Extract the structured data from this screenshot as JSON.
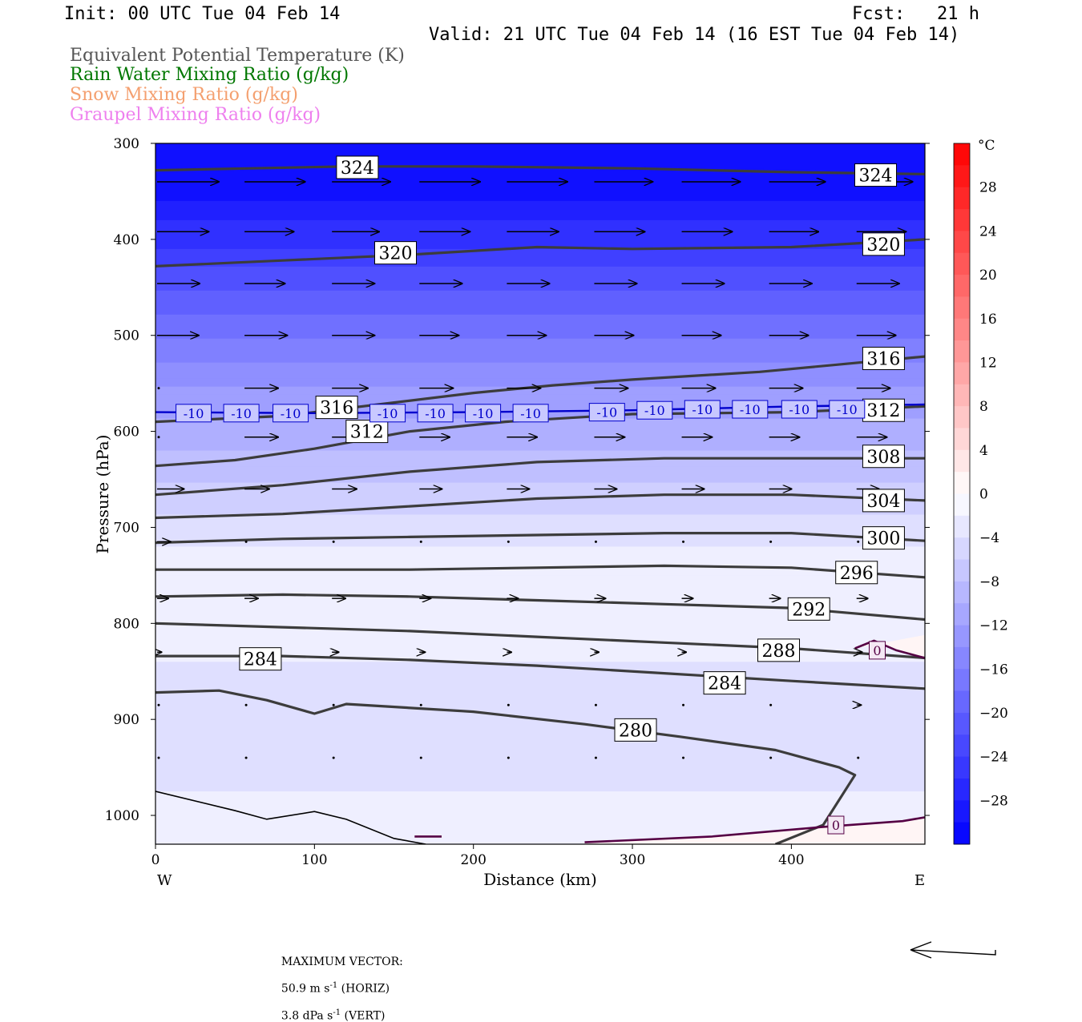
{
  "header": {
    "init": "Init: 00 UTC Tue 04 Feb 14",
    "fcst": "Fcst:   21 h",
    "valid": "Valid: 21 UTC Tue 04 Feb 14 (16 EST Tue 04 Feb 14)"
  },
  "legend": {
    "eqpt": "Equivalent Potential Temperature (K)",
    "rain": "Rain Water Mixing Ratio (g/kg)",
    "snow": "Snow Mixing Ratio (g/kg)",
    "graupel": "Graupel Mixing Ratio (g/kg)",
    "colors": {
      "eqpt": "#555555",
      "rain": "#007700",
      "snow": "#f4a070",
      "graupel": "#ee80ee"
    }
  },
  "footer": {
    "max_label": "MAXIMUM VECTOR:",
    "horiz_value": "50.9 m s",
    "horiz_exp": "-1",
    "horiz_unit": " (HORIZ)",
    "vert_value": "3.8 dPa s",
    "vert_exp": "-1",
    "vert_unit": " (VERT)"
  },
  "chart_data": {
    "type": "cross-section",
    "xlabel": "Distance (km)",
    "ylabel": "Pressure (hPa)",
    "x_ticks": [
      0,
      100,
      200,
      300,
      400
    ],
    "y_ticks": [
      300,
      400,
      500,
      600,
      700,
      800,
      900,
      1000
    ],
    "xlim": [
      0,
      484
    ],
    "ylim": [
      300,
      1030
    ],
    "x_left_label": "W",
    "x_right_label": "E",
    "colorbar": {
      "unit": "°C",
      "ticks": [
        28,
        24,
        20,
        16,
        12,
        8,
        4,
        0,
        -4,
        -8,
        -12,
        -16,
        -20,
        -24,
        -28
      ],
      "min": -32,
      "max": 32
    },
    "theta_e_contours": [
      {
        "level": 324,
        "x": [
          0,
          60,
          120,
          200,
          300,
          400,
          484
        ],
        "p": [
          328,
          326,
          324,
          324,
          326,
          330,
          332
        ]
      },
      {
        "level": 320,
        "x": [
          0,
          80,
          160,
          240,
          300,
          400,
          484
        ],
        "p": [
          428,
          422,
          416,
          408,
          410,
          408,
          400
        ]
      },
      {
        "level": 316,
        "x": [
          0,
          80,
          150,
          200,
          250,
          300,
          380,
          484
        ],
        "p": [
          590,
          584,
          570,
          560,
          552,
          546,
          538,
          522
        ]
      },
      {
        "level": 312,
        "x": [
          0,
          50,
          100,
          160,
          220,
          300,
          400,
          484
        ],
        "p": [
          636,
          630,
          618,
          600,
          590,
          582,
          580,
          574
        ]
      },
      {
        "level": 308,
        "x": [
          0,
          80,
          160,
          240,
          320,
          400,
          484
        ],
        "p": [
          666,
          656,
          642,
          632,
          628,
          628,
          628
        ]
      },
      {
        "level": 304,
        "x": [
          0,
          80,
          160,
          240,
          320,
          400,
          484
        ],
        "p": [
          690,
          686,
          678,
          670,
          666,
          666,
          672
        ]
      },
      {
        "level": 300,
        "x": [
          0,
          80,
          160,
          240,
          320,
          400,
          484
        ],
        "p": [
          716,
          712,
          710,
          708,
          706,
          706,
          714
        ]
      },
      {
        "level": 296,
        "x": [
          0,
          80,
          160,
          240,
          320,
          400,
          484
        ],
        "p": [
          744,
          744,
          744,
          742,
          740,
          742,
          752
        ]
      },
      {
        "level": 292,
        "x": [
          0,
          80,
          160,
          240,
          320,
          400,
          484
        ],
        "p": [
          772,
          770,
          772,
          776,
          780,
          784,
          796
        ]
      },
      {
        "level": 288,
        "x": [
          0,
          80,
          160,
          240,
          320,
          400,
          484
        ],
        "p": [
          800,
          804,
          808,
          814,
          820,
          826,
          836
        ]
      },
      {
        "level": 284,
        "x": [
          0,
          80,
          160,
          240,
          320,
          400,
          484
        ],
        "p": [
          834,
          834,
          838,
          844,
          852,
          860,
          868
        ]
      },
      {
        "level": 280,
        "x": [
          0,
          40,
          70,
          100,
          120,
          200,
          270,
          330,
          390,
          430,
          440,
          420,
          390
        ],
        "p": [
          872,
          870,
          880,
          894,
          884,
          892,
          905,
          918,
          932,
          950,
          958,
          1010,
          1030
        ]
      }
    ],
    "temp_minus10": {
      "x": [
        0,
        100,
        200,
        300,
        400,
        484
      ],
      "p": [
        580,
        581,
        580,
        578,
        574,
        572
      ]
    },
    "temp_zero_areas": [
      {
        "x": [
          440,
          452,
          466,
          484
        ],
        "p": [
          826,
          818,
          828,
          836
        ]
      },
      {
        "x": [
          270,
          350,
          420,
          470,
          484
        ],
        "p": [
          1028,
          1022,
          1012,
          1006,
          1002
        ]
      },
      {
        "x": [
          163,
          180
        ],
        "p": [
          1022,
          1022
        ]
      }
    ],
    "theta_e_labels": [
      {
        "text": "324",
        "x": 127,
        "p": 325
      },
      {
        "text": "324",
        "x": 453,
        "p": 333
      },
      {
        "text": "320",
        "x": 151,
        "p": 414
      },
      {
        "text": "320",
        "x": 458,
        "p": 405
      },
      {
        "text": "316",
        "x": 114,
        "p": 575
      },
      {
        "text": "316",
        "x": 458,
        "p": 524
      },
      {
        "text": "312",
        "x": 133,
        "p": 600
      },
      {
        "text": "312",
        "x": 458,
        "p": 578
      },
      {
        "text": "308",
        "x": 458,
        "p": 626
      },
      {
        "text": "304",
        "x": 458,
        "p": 672
      },
      {
        "text": "300",
        "x": 458,
        "p": 711
      },
      {
        "text": "296",
        "x": 441,
        "p": 747
      },
      {
        "text": "292",
        "x": 411,
        "p": 785
      },
      {
        "text": "288",
        "x": 392,
        "p": 828
      },
      {
        "text": "284",
        "x": 358,
        "p": 862
      },
      {
        "text": "284",
        "x": 66,
        "p": 837
      },
      {
        "text": "280",
        "x": 302,
        "p": 911
      }
    ],
    "temp_labels": [
      {
        "text": "-10",
        "x": 24,
        "p": 581
      },
      {
        "text": "-10",
        "x": 54,
        "p": 581
      },
      {
        "text": "-10",
        "x": 85,
        "p": 581
      },
      {
        "text": "-10",
        "x": 146,
        "p": 581
      },
      {
        "text": "-10",
        "x": 176,
        "p": 581
      },
      {
        "text": "-10",
        "x": 206,
        "p": 581
      },
      {
        "text": "-10",
        "x": 236,
        "p": 581
      },
      {
        "text": "-10",
        "x": 284,
        "p": 580
      },
      {
        "text": "-10",
        "x": 314,
        "p": 578
      },
      {
        "text": "-10",
        "x": 344,
        "p": 577
      },
      {
        "text": "-10",
        "x": 374,
        "p": 577
      },
      {
        "text": "-10",
        "x": 405,
        "p": 577
      },
      {
        "text": "-10",
        "x": 435,
        "p": 577
      },
      {
        "text": "0",
        "x": 454,
        "p": 828
      },
      {
        "text": "0",
        "x": 428,
        "p": 1010
      }
    ],
    "wind_rows": [
      {
        "p": 340,
        "xs": [
          0,
          55,
          110,
          165,
          220,
          275,
          330,
          385,
          440
        ],
        "lens": [
          55,
          54,
          52,
          54,
          54,
          52,
          52,
          50,
          50
        ]
      },
      {
        "p": 392,
        "xs": [
          0,
          55,
          110,
          165,
          220,
          275,
          330,
          385,
          440
        ],
        "lens": [
          46,
          44,
          42,
          45,
          46,
          45,
          45,
          44,
          44
        ]
      },
      {
        "p": 446,
        "xs": [
          0,
          55,
          110,
          165,
          220,
          275,
          330,
          385,
          440
        ],
        "lens": [
          38,
          36,
          38,
          38,
          38,
          38,
          38,
          38,
          38
        ]
      },
      {
        "p": 500,
        "xs": [
          0,
          55,
          110,
          165,
          220,
          275,
          330,
          385,
          440
        ],
        "lens": [
          37,
          38,
          38,
          35,
          35,
          35,
          35,
          35,
          35
        ]
      },
      {
        "p": 555,
        "xs": [
          0,
          55,
          110,
          165,
          220,
          275,
          330,
          385,
          440
        ],
        "lens": [
          0,
          30,
          32,
          30,
          30,
          30,
          30,
          30,
          30
        ]
      },
      {
        "p": 606,
        "xs": [
          0,
          55,
          110,
          165,
          220,
          275,
          330,
          385,
          440
        ],
        "lens": [
          0,
          30,
          25,
          27,
          27,
          27,
          27,
          27,
          27
        ]
      },
      {
        "p": 660,
        "xs": [
          0,
          55,
          110,
          165,
          220,
          275,
          330,
          385,
          440
        ],
        "lens": [
          24,
          22,
          22,
          20,
          20,
          20,
          20,
          20,
          20
        ]
      },
      {
        "p": 715,
        "xs": [
          0,
          55,
          110,
          165,
          220,
          275,
          330,
          385,
          440
        ],
        "lens": [
          12,
          0,
          0,
          0,
          0,
          0,
          0,
          0,
          0
        ]
      },
      {
        "p": 774,
        "xs": [
          0,
          55,
          110,
          165,
          220,
          275,
          330,
          385,
          440
        ],
        "lens": [
          10,
          12,
          12,
          10,
          10,
          10,
          10,
          10,
          10
        ]
      },
      {
        "p": 830,
        "xs": [
          0,
          55,
          110,
          165,
          220,
          275,
          330,
          385,
          440
        ],
        "lens": [
          4,
          6,
          6,
          5,
          4,
          4,
          4,
          5,
          5
        ]
      },
      {
        "p": 885,
        "xs": [
          0,
          55,
          110,
          165,
          220,
          275,
          330,
          385,
          440
        ],
        "lens": [
          2,
          2,
          2,
          2,
          2,
          2,
          2,
          2,
          4
        ]
      },
      {
        "p": 940,
        "xs": [
          0,
          55,
          110,
          165,
          220,
          275,
          330,
          385,
          440
        ],
        "lens": [
          2,
          3,
          2,
          2,
          2,
          2,
          2,
          2,
          2
        ]
      }
    ],
    "temp_field": [
      {
        "p": 300,
        "t": -30
      },
      {
        "p": 360,
        "t": -29
      },
      {
        "p": 420,
        "t": -24
      },
      {
        "p": 470,
        "t": -20
      },
      {
        "p": 520,
        "t": -16
      },
      {
        "p": 570,
        "t": -12
      },
      {
        "p": 620,
        "t": -9
      },
      {
        "p": 670,
        "t": -6
      },
      {
        "p": 720,
        "t": -3
      },
      {
        "p": 780,
        "t": -2
      },
      {
        "p": 840,
        "t": -3
      },
      {
        "p": 900,
        "t": -5
      },
      {
        "p": 950,
        "t": -4
      },
      {
        "p": 1000,
        "t": -2
      },
      {
        "p": 1030,
        "t": -1
      }
    ]
  }
}
